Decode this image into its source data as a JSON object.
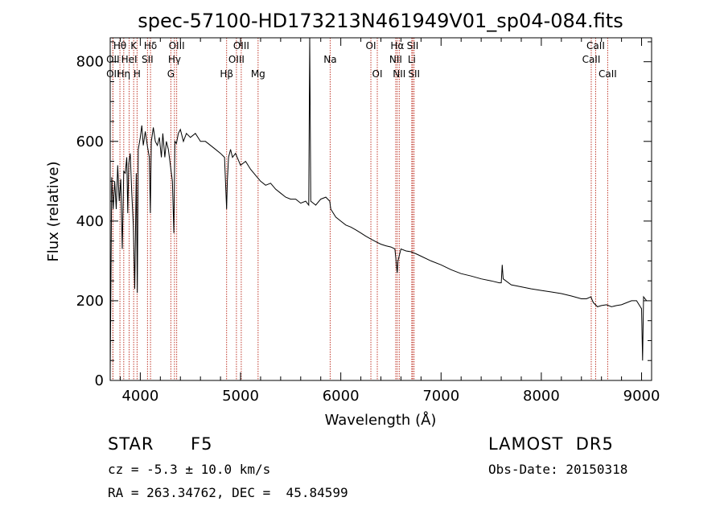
{
  "chart_data": {
    "type": "line",
    "title": "spec-57100-HD173213N461949V01_sp04-084.fits",
    "xlabel": "Wavelength (Å)",
    "ylabel": "Flux (relative)",
    "xlim": [
      3700,
      9100
    ],
    "ylim": [
      0,
      860
    ],
    "xticks": [
      4000,
      5000,
      6000,
      7000,
      8000,
      9000
    ],
    "yticks": [
      0,
      200,
      400,
      600,
      800
    ],
    "grid": false,
    "series": [
      {
        "color": "#000000",
        "points": [
          [
            3700,
            20
          ],
          [
            3715,
            510
          ],
          [
            3730,
            430
          ],
          [
            3745,
            500
          ],
          [
            3760,
            430
          ],
          [
            3775,
            540
          ],
          [
            3790,
            450
          ],
          [
            3805,
            505
          ],
          [
            3820,
            330
          ],
          [
            3835,
            525
          ],
          [
            3850,
            520
          ],
          [
            3865,
            560
          ],
          [
            3875,
            420
          ],
          [
            3885,
            545
          ],
          [
            3900,
            570
          ],
          [
            3915,
            470
          ],
          [
            3930,
            390
          ],
          [
            3945,
            230
          ],
          [
            3960,
            520
          ],
          [
            3970,
            220
          ],
          [
            3980,
            580
          ],
          [
            4000,
            610
          ],
          [
            4015,
            640
          ],
          [
            4030,
            590
          ],
          [
            4050,
            625
          ],
          [
            4070,
            590
          ],
          [
            4090,
            560
          ],
          [
            4100,
            420
          ],
          [
            4110,
            600
          ],
          [
            4130,
            635
          ],
          [
            4150,
            600
          ],
          [
            4170,
            590
          ],
          [
            4190,
            610
          ],
          [
            4210,
            560
          ],
          [
            4225,
            620
          ],
          [
            4245,
            560
          ],
          [
            4260,
            600
          ],
          [
            4280,
            580
          ],
          [
            4300,
            540
          ],
          [
            4320,
            500
          ],
          [
            4335,
            370
          ],
          [
            4345,
            600
          ],
          [
            4360,
            595
          ],
          [
            4380,
            620
          ],
          [
            4400,
            630
          ],
          [
            4430,
            600
          ],
          [
            4460,
            620
          ],
          [
            4500,
            610
          ],
          [
            4550,
            620
          ],
          [
            4600,
            600
          ],
          [
            4650,
            600
          ],
          [
            4700,
            590
          ],
          [
            4750,
            580
          ],
          [
            4800,
            570
          ],
          [
            4840,
            560
          ],
          [
            4855,
            470
          ],
          [
            4861,
            430
          ],
          [
            4868,
            500
          ],
          [
            4880,
            560
          ],
          [
            4900,
            580
          ],
          [
            4920,
            560
          ],
          [
            4950,
            570
          ],
          [
            5000,
            540
          ],
          [
            5050,
            550
          ],
          [
            5100,
            530
          ],
          [
            5150,
            515
          ],
          [
            5200,
            500
          ],
          [
            5250,
            490
          ],
          [
            5300,
            495
          ],
          [
            5350,
            480
          ],
          [
            5400,
            470
          ],
          [
            5450,
            460
          ],
          [
            5500,
            455
          ],
          [
            5550,
            455
          ],
          [
            5600,
            445
          ],
          [
            5650,
            450
          ],
          [
            5680,
            440
          ],
          [
            5690,
            860
          ],
          [
            5700,
            450
          ],
          [
            5750,
            440
          ],
          [
            5800,
            455
          ],
          [
            5850,
            460
          ],
          [
            5890,
            450
          ],
          [
            5900,
            430
          ],
          [
            5950,
            410
          ],
          [
            6000,
            400
          ],
          [
            6050,
            390
          ],
          [
            6100,
            385
          ],
          [
            6150,
            378
          ],
          [
            6200,
            370
          ],
          [
            6250,
            362
          ],
          [
            6300,
            355
          ],
          [
            6350,
            348
          ],
          [
            6400,
            342
          ],
          [
            6450,
            338
          ],
          [
            6500,
            335
          ],
          [
            6540,
            330
          ],
          [
            6555,
            290
          ],
          [
            6563,
            270
          ],
          [
            6570,
            300
          ],
          [
            6600,
            330
          ],
          [
            6650,
            325
          ],
          [
            6700,
            323
          ],
          [
            6750,
            318
          ],
          [
            6800,
            312
          ],
          [
            6900,
            300
          ],
          [
            7000,
            290
          ],
          [
            7100,
            278
          ],
          [
            7200,
            268
          ],
          [
            7300,
            262
          ],
          [
            7400,
            255
          ],
          [
            7500,
            250
          ],
          [
            7580,
            245
          ],
          [
            7600,
            245
          ],
          [
            7610,
            290
          ],
          [
            7620,
            255
          ],
          [
            7700,
            240
          ],
          [
            7800,
            235
          ],
          [
            7900,
            230
          ],
          [
            8000,
            226
          ],
          [
            8100,
            222
          ],
          [
            8200,
            218
          ],
          [
            8300,
            212
          ],
          [
            8400,
            205
          ],
          [
            8450,
            205
          ],
          [
            8495,
            210
          ],
          [
            8510,
            200
          ],
          [
            8520,
            195
          ],
          [
            8540,
            190
          ],
          [
            8560,
            185
          ],
          [
            8600,
            188
          ],
          [
            8650,
            190
          ],
          [
            8700,
            185
          ],
          [
            8750,
            188
          ],
          [
            8800,
            190
          ],
          [
            8850,
            195
          ],
          [
            8900,
            200
          ],
          [
            8950,
            200
          ],
          [
            9000,
            180
          ],
          [
            9010,
            50
          ],
          [
            9020,
            210
          ],
          [
            9050,
            200
          ]
        ]
      }
    ],
    "line_markers": [
      {
        "label": "OII",
        "x": 3727,
        "row": 3
      },
      {
        "label": "Hθ",
        "x": 3797,
        "row": 1
      },
      {
        "label": "OII",
        "x": 3727,
        "row": 2
      },
      {
        "label": "Hη",
        "x": 3835,
        "row": 3
      },
      {
        "label": "HeI",
        "x": 3889,
        "row": 2
      },
      {
        "label": "K",
        "x": 3934,
        "row": 1
      },
      {
        "label": "H",
        "x": 3968,
        "row": 3
      },
      {
        "label": "Hδ",
        "x": 4102,
        "row": 1
      },
      {
        "label": "SII",
        "x": 4072,
        "row": 2
      },
      {
        "label": "OIII",
        "x": 4363,
        "row": 1
      },
      {
        "label": "Hγ",
        "x": 4341,
        "row": 2
      },
      {
        "label": "G",
        "x": 4305,
        "row": 3
      },
      {
        "label": "Hβ",
        "x": 4861,
        "row": 3
      },
      {
        "label": "OIII",
        "x": 4959,
        "row": 2
      },
      {
        "label": "OIII",
        "x": 5007,
        "row": 1
      },
      {
        "label": "Mg",
        "x": 5175,
        "row": 3
      },
      {
        "label": "Na",
        "x": 5894,
        "row": 2
      },
      {
        "label": "OI",
        "x": 6300,
        "row": 1
      },
      {
        "label": "OI",
        "x": 6364,
        "row": 3
      },
      {
        "label": "Hα",
        "x": 6563,
        "row": 1
      },
      {
        "label": "NII",
        "x": 6548,
        "row": 2
      },
      {
        "label": "NII",
        "x": 6583,
        "row": 3
      },
      {
        "label": "SII",
        "x": 6717,
        "row": 1
      },
      {
        "label": "Li",
        "x": 6708,
        "row": 2
      },
      {
        "label": "SII",
        "x": 6731,
        "row": 3
      },
      {
        "label": "CaII",
        "x": 8498,
        "row": 2
      },
      {
        "label": "CaII",
        "x": 8542,
        "row": 1
      },
      {
        "label": "CaII",
        "x": 8662,
        "row": 3
      }
    ]
  },
  "info": {
    "object_class": "STAR",
    "subclass": "F5",
    "survey": "LAMOST  DR5",
    "cz": "cz = -5.3 ± 10.0 km/s",
    "obs_date": "Obs-Date: 20150318",
    "coords": "RA = 263.34762, DEC =  45.84599"
  }
}
